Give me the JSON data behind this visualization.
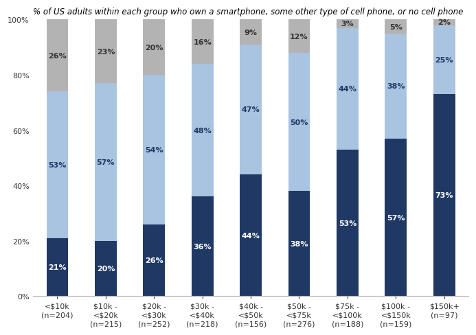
{
  "title": "% of US adults within each group who own a smartphone, some other type of cell phone, or no cell phone",
  "categories": [
    "<$10k\n(n=204)",
    "$10k -\n<$20k\n(n=215)",
    "$20k -\n<$30k\n(n=252)",
    "$30k -\n<$40k\n(n=218)",
    "$40k -\n<$50k\n(n=156)",
    "$50k -\n<$75k\n(n=276)",
    "$75k -\n<$100k\n(n=188)",
    "$100k -\n<$150k\n(n=159)",
    "$150k+\n(n=97)"
  ],
  "smartphone": [
    21,
    20,
    26,
    36,
    44,
    38,
    53,
    57,
    73
  ],
  "other_cell": [
    53,
    57,
    54,
    48,
    47,
    50,
    44,
    38,
    25
  ],
  "no_cell": [
    26,
    23,
    20,
    16,
    9,
    12,
    3,
    5,
    2
  ],
  "color_smartphone": "#1F3864",
  "color_other_cell": "#A8C4E0",
  "color_no_cell": "#B3B3B3",
  "bar_width": 0.45,
  "ylim": [
    0,
    100
  ],
  "yticks": [
    0,
    20,
    40,
    60,
    80,
    100
  ],
  "ytick_labels": [
    "0%",
    "20%",
    "40%",
    "60%",
    "80%",
    "100%"
  ],
  "figsize": [
    6.93,
    4.89
  ],
  "dpi": 100,
  "title_fontsize": 8.5,
  "label_fontsize_white": 8,
  "label_fontsize_dark": 8,
  "tick_fontsize": 8,
  "background_color": "#FFFFFF"
}
